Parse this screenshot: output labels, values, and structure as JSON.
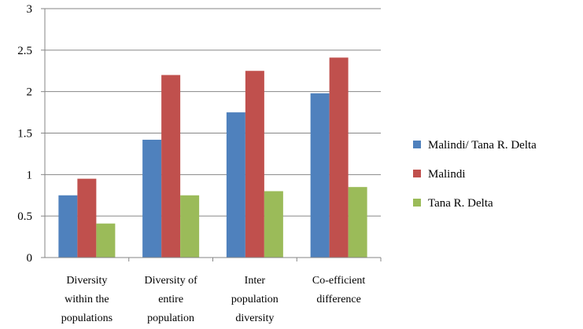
{
  "chart_data": {
    "type": "bar",
    "title": "",
    "xlabel": "",
    "ylabel": "",
    "ylim": [
      0,
      3
    ],
    "yticks": [
      "0",
      "0.5",
      "1",
      "1.5",
      "2",
      "2.5",
      "3"
    ],
    "grid": true,
    "legend_position": "right",
    "categories": [
      [
        "Diversity",
        "within the",
        "populations"
      ],
      [
        "Diversity of",
        "entire",
        "population"
      ],
      [
        "Inter",
        "population",
        "diversity"
      ],
      [
        "Co-efficient",
        "difference"
      ]
    ],
    "series": [
      {
        "name": "Malindi/ Tana R. Delta",
        "color": "#4F81BD",
        "values": [
          0.75,
          1.42,
          1.75,
          1.98
        ]
      },
      {
        "name": "Malindi",
        "color": "#C0504D",
        "values": [
          0.95,
          2.2,
          2.25,
          2.41
        ]
      },
      {
        "name": "Tana R. Delta",
        "color": "#9BBB59",
        "values": [
          0.41,
          0.75,
          0.8,
          0.85
        ]
      }
    ]
  }
}
